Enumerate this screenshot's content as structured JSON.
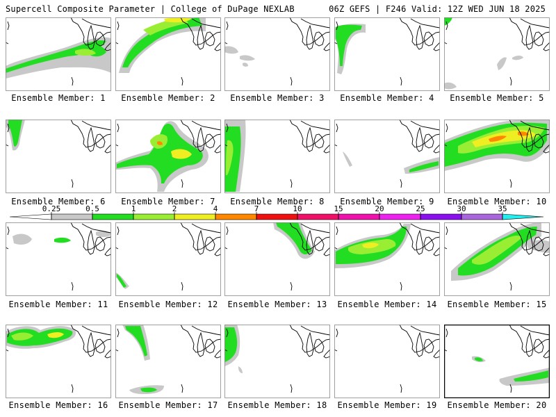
{
  "header": {
    "left_title": "Supercell Composite Parameter | College of DuPage NEXLAB",
    "right_title": "06Z GEFS | F246 Valid: 12Z WED JUN 18 2025"
  },
  "colors": {
    "scale": [
      "#c8c8c8",
      "#22dd22",
      "#99ee33",
      "#eeee22",
      "#ff8800",
      "#ee1111",
      "#ee1166",
      "#ee11aa",
      "#ee22ee",
      "#8811ee",
      "#aa66dd",
      "#22eeee"
    ],
    "outline": "#000000",
    "background": "#ffffff"
  },
  "legend": {
    "ticks": [
      "0.25",
      "0.5",
      "1",
      "2",
      "4",
      "7",
      "10",
      "15",
      "20",
      "25",
      "30",
      "35"
    ]
  },
  "panels": [
    {
      "label": "Ensemble Member: 1",
      "highlighted": false
    },
    {
      "label": "Ensemble Member: 2",
      "highlighted": false
    },
    {
      "label": "Ensemble Member: 3",
      "highlighted": false
    },
    {
      "label": "Ensemble Member: 4",
      "highlighted": false
    },
    {
      "label": "Ensemble Member: 5",
      "highlighted": false
    },
    {
      "label": "Ensemble Member: 6",
      "highlighted": false
    },
    {
      "label": "Ensemble Member: 7",
      "highlighted": false
    },
    {
      "label": "Ensemble Member: 8",
      "highlighted": false
    },
    {
      "label": "Ensemble Member: 9",
      "highlighted": false
    },
    {
      "label": "Ensemble Member: 10",
      "highlighted": false
    },
    {
      "label": "Ensemble Member: 11",
      "highlighted": false
    },
    {
      "label": "Ensemble Member: 12",
      "highlighted": false
    },
    {
      "label": "Ensemble Member: 13",
      "highlighted": false
    },
    {
      "label": "Ensemble Member: 14",
      "highlighted": false
    },
    {
      "label": "Ensemble Member: 15",
      "highlighted": false
    },
    {
      "label": "Ensemble Member: 16",
      "highlighted": false
    },
    {
      "label": "Ensemble Member: 17",
      "highlighted": false
    },
    {
      "label": "Ensemble Member: 18",
      "highlighted": false
    },
    {
      "label": "Ensemble Member: 19",
      "highlighted": false
    },
    {
      "label": "Ensemble Member: 20",
      "highlighted": true
    }
  ]
}
